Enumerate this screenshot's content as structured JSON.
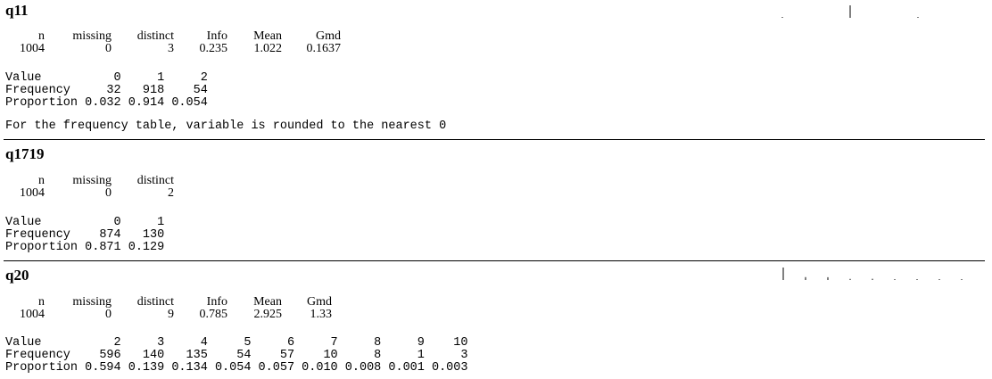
{
  "sections": [
    {
      "title": "q11",
      "stat_labels": [
        "n",
        "missing",
        "distinct",
        "Info",
        "Mean",
        "Gmd"
      ],
      "stat_values": [
        "1004",
        "0",
        "3",
        "0.235",
        "1.022",
        "0.1637"
      ],
      "freq_table": [
        "Value          0     1     2",
        "Frequency     32   918    54",
        "Proportion 0.032 0.914 0.054"
      ],
      "note": "For the frequency table, variable is rounded to the nearest 0",
      "spark_levels": [
        0.032,
        0.914,
        0.054
      ]
    },
    {
      "title": "q1719",
      "stat_labels": [
        "n",
        "missing",
        "distinct"
      ],
      "stat_values": [
        "1004",
        "0",
        "2"
      ],
      "freq_table": [
        "Value          0     1",
        "Frequency    874   130",
        "Proportion 0.871 0.129"
      ]
    },
    {
      "title": "q20",
      "stat_labels": [
        "n",
        "missing",
        "distinct",
        "Info",
        "Mean",
        "Gmd"
      ],
      "stat_values": [
        "1004",
        "0",
        "9",
        "0.785",
        "2.925",
        "1.33"
      ],
      "freq_table": [
        "Value          2     3     4     5     6     7     8     9    10",
        "Frequency    596   140   135    54    57    10     8     1     3",
        "Proportion 0.594 0.139 0.134 0.054 0.057 0.010 0.008 0.001 0.003"
      ],
      "spark_levels": [
        0.594,
        0.139,
        0.134,
        0.054,
        0.057,
        0.01,
        0.008,
        0.001,
        0.003
      ]
    }
  ]
}
